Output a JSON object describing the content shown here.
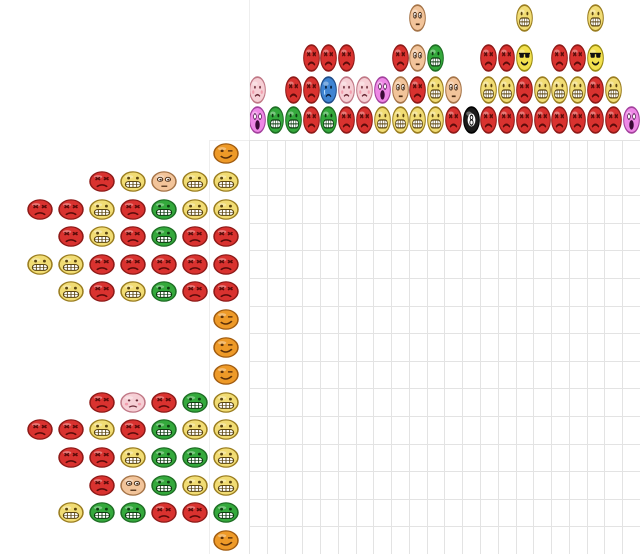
{
  "palette": {
    "R": {
      "name": "angry-red-face-icon",
      "fill": "#d9322f",
      "edge": "#8e1a18",
      "feature": "#5a0c0a"
    },
    "G": {
      "name": "grinning-green-face-icon",
      "fill": "#34a93c",
      "edge": "#1e6e24",
      "feature": "#0d3b10"
    },
    "Y": {
      "name": "grinning-yellow-face-icon",
      "fill": "#f1dc74",
      "edge": "#9a7d20",
      "feature": "#5a4410"
    },
    "O": {
      "name": "winking-orange-face-icon",
      "fill": "#ee9a28",
      "edge": "#a15c10",
      "feature": "#5a300a"
    },
    "T": {
      "name": "surprised-tan-face-icon",
      "fill": "#f2c49a",
      "edge": "#a57448",
      "feature": "#4a2c14"
    },
    "P": {
      "name": "sad-pink-face-icon",
      "fill": "#f6cfd5",
      "edge": "#c07886",
      "feature": "#6a2a36"
    },
    "M": {
      "name": "screaming-magenta-face-icon",
      "fill": "#ee88e6",
      "edge": "#a3419d",
      "feature": "#3a0a36"
    },
    "B": {
      "name": "crying-blue-face-icon",
      "fill": "#3f84d2",
      "edge": "#1f4c88",
      "feature": "#0c2240"
    },
    "L": {
      "name": "sick-olive-face-icon",
      "fill": "#b7bc48",
      "edge": "#6f7320",
      "feature": "#333510"
    },
    "C": {
      "name": "sunglasses-face-icon",
      "fill": "#f2e04e",
      "edge": "#9a8a10",
      "feature": "#111111"
    },
    "K": {
      "name": "eight-ball-icon",
      "fill": "#1a1a1a",
      "edge": "#000000",
      "feature": "#ffffff"
    }
  },
  "top_clues": [
    [
      "P",
      "M"
    ],
    [
      "G"
    ],
    [
      "R",
      "G"
    ],
    [
      "R",
      "R",
      "R"
    ],
    [
      "R",
      "B",
      "G"
    ],
    [
      "R",
      "P",
      "R"
    ],
    [
      "P",
      "R"
    ],
    [
      "M",
      "Y"
    ],
    [
      "R",
      "T",
      "Y"
    ],
    [
      "T",
      "T",
      "R",
      "Y"
    ],
    [
      "G",
      "Y",
      "Y"
    ],
    [
      "T",
      "R"
    ],
    [
      "K"
    ],
    [
      "R",
      "Y",
      "R"
    ],
    [
      "R",
      "Y",
      "R"
    ],
    [
      "Y",
      "C",
      "R",
      "R"
    ],
    [
      "Y",
      "R"
    ],
    [
      "R",
      "Y",
      "R"
    ],
    [
      "R",
      "Y",
      "R"
    ],
    [
      "Y",
      "C",
      "R",
      "R"
    ],
    [
      "Y",
      "R"
    ],
    [
      "M"
    ]
  ],
  "left_clues": [
    [
      "O"
    ],
    [
      "R",
      "Y",
      "T",
      "Y",
      "Y"
    ],
    [
      "R",
      "R",
      "Y",
      "R",
      "G",
      "Y",
      "Y"
    ],
    [
      "R",
      "Y",
      "R",
      "G",
      "R",
      "R"
    ],
    [
      "Y",
      "Y",
      "R",
      "R",
      "R",
      "R",
      "R"
    ],
    [
      "Y",
      "R",
      "Y",
      "G",
      "R",
      "R"
    ],
    [
      "O"
    ],
    [
      "O"
    ],
    [
      "O"
    ],
    [
      "R",
      "P",
      "R",
      "G",
      "Y"
    ],
    [
      "R",
      "R",
      "Y",
      "R",
      "G",
      "Y",
      "Y"
    ],
    [
      "R",
      "R",
      "Y",
      "G",
      "G",
      "Y"
    ],
    [
      "R",
      "T",
      "G",
      "Y",
      "Y"
    ],
    [
      "Y",
      "G",
      "G",
      "R",
      "R",
      "G"
    ],
    [
      "O"
    ]
  ],
  "grid": {
    "columns": 22,
    "rows": 15
  }
}
